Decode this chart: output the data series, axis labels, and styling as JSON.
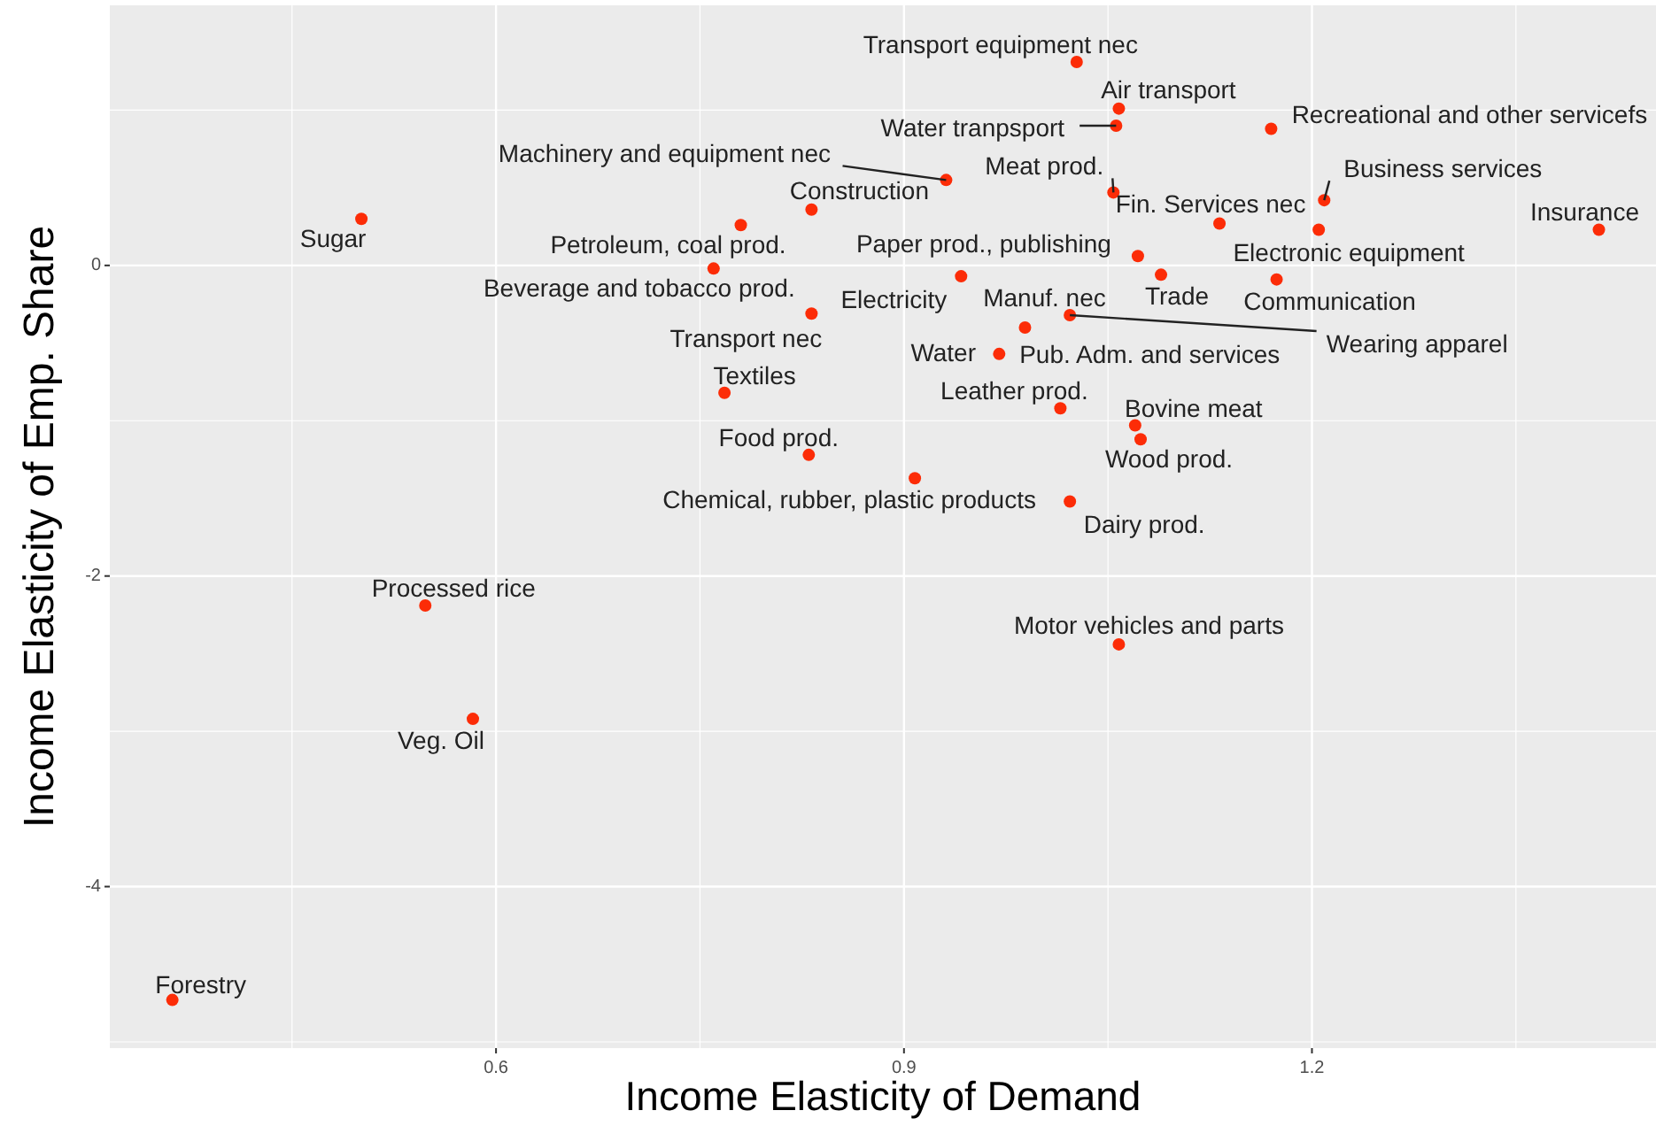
{
  "chart_data": {
    "type": "scatter",
    "xlabel": "Income Elasticity of Demand",
    "ylabel": "Income Elasticity of Emp. Share",
    "xlim": [
      0.316,
      1.453
    ],
    "ylim": [
      -5.04,
      1.675
    ],
    "xticks": [
      0.6,
      0.9,
      1.2
    ],
    "yticks": [
      -4,
      -2,
      0
    ],
    "grid": true,
    "marker": "circle",
    "x": [
      0.501,
      0.362,
      0.548,
      0.583,
      0.78,
      0.76,
      0.832,
      0.832,
      0.768,
      0.83,
      0.908,
      0.931,
      1.027,
      1.058,
      1.056,
      1.17,
      1.054,
      1.132,
      1.209,
      1.205,
      1.411,
      1.072,
      1.089,
      1.174,
      0.942,
      0.989,
      1.022,
      null,
      0.97,
      1.015,
      1.07,
      1.074,
      1.022,
      1.058
    ],
    "series": [
      {
        "color": "#fc2c07",
        "values": [
          0.3,
          -4.73,
          -2.19,
          -2.92,
          0.26,
          -0.02,
          0.36,
          -0.31,
          -0.82,
          -1.22,
          -1.37,
          0.55,
          1.31,
          1.01,
          0.9,
          0.88,
          0.47,
          0.27,
          0.42,
          0.23,
          0.23,
          0.06,
          -0.06,
          -0.09,
          -0.07,
          -0.4,
          -0.32,
          null,
          -0.57,
          -0.92,
          -1.03,
          -1.12,
          -1.52,
          -2.44
        ]
      }
    ],
    "annotations": [
      {
        "text": "Sugar",
        "x": 0.501,
        "y": 0.3
      },
      {
        "text": "Forestry",
        "x": 0.362,
        "y": -4.73
      },
      {
        "text": "Processed rice",
        "x": 0.548,
        "y": -2.19
      },
      {
        "text": "Veg. Oil",
        "x": 0.583,
        "y": -2.92
      },
      {
        "text": "Petroleum, coal prod.",
        "x": 0.78,
        "y": 0.26
      },
      {
        "text": "Beverage and tobacco prod.",
        "x": 0.76,
        "y": -0.02
      },
      {
        "text": "Construction",
        "x": 0.832,
        "y": 0.36
      },
      {
        "text": "Transport nec",
        "x": 0.832,
        "y": -0.31
      },
      {
        "text": "Textiles",
        "x": 0.768,
        "y": -0.82
      },
      {
        "text": "Food prod.",
        "x": 0.83,
        "y": -1.22
      },
      {
        "text": "Chemical, rubber, plastic products",
        "x": 0.908,
        "y": -1.37
      },
      {
        "text": "Machinery and equipment nec",
        "x": 0.931,
        "y": 0.55
      },
      {
        "text": "Transport equipment nec",
        "x": 1.027,
        "y": 1.31
      },
      {
        "text": "Air transport",
        "x": 1.058,
        "y": 1.01
      },
      {
        "text": "Water tranpsport",
        "x": 1.056,
        "y": 0.9
      },
      {
        "text": "Recreational and other servicefs",
        "x": 1.17,
        "y": 0.88
      },
      {
        "text": "Meat prod.",
        "x": 1.054,
        "y": 0.47
      },
      {
        "text": "Fin. Services nec",
        "x": 1.132,
        "y": 0.27
      },
      {
        "text": "Business services",
        "x": 1.209,
        "y": 0.42
      },
      {
        "text": "Electronic equipment",
        "x": 1.205,
        "y": 0.23
      },
      {
        "text": "Insurance",
        "x": 1.411,
        "y": 0.23
      },
      {
        "text": "Paper prod., publishing",
        "x": 1.072,
        "y": 0.06
      },
      {
        "text": "Trade",
        "x": 1.089,
        "y": -0.06
      },
      {
        "text": "Communication",
        "x": 1.174,
        "y": -0.09
      },
      {
        "text": "Electricity",
        "x": 0.942,
        "y": -0.07
      },
      {
        "text": "Manuf. nec",
        "x": 0.989,
        "y": -0.4
      },
      {
        "text": "Wearing apparel",
        "x": 1.022,
        "y": -0.32
      },
      {
        "text": "Water",
        "x": 0.968,
        "y": -0.56
      },
      {
        "text": "Pub. Adm. and services",
        "x": 0.97,
        "y": -0.57
      },
      {
        "text": "Leather prod.",
        "x": 1.015,
        "y": -0.92
      },
      {
        "text": "Bovine meat",
        "x": 1.07,
        "y": -1.03
      },
      {
        "text": "Wood prod.",
        "x": 1.074,
        "y": -1.12
      },
      {
        "text": "Dairy prod.",
        "x": 1.022,
        "y": -1.52
      },
      {
        "text": "Motor vehicles and parts",
        "x": 1.058,
        "y": -2.44
      }
    ]
  }
}
